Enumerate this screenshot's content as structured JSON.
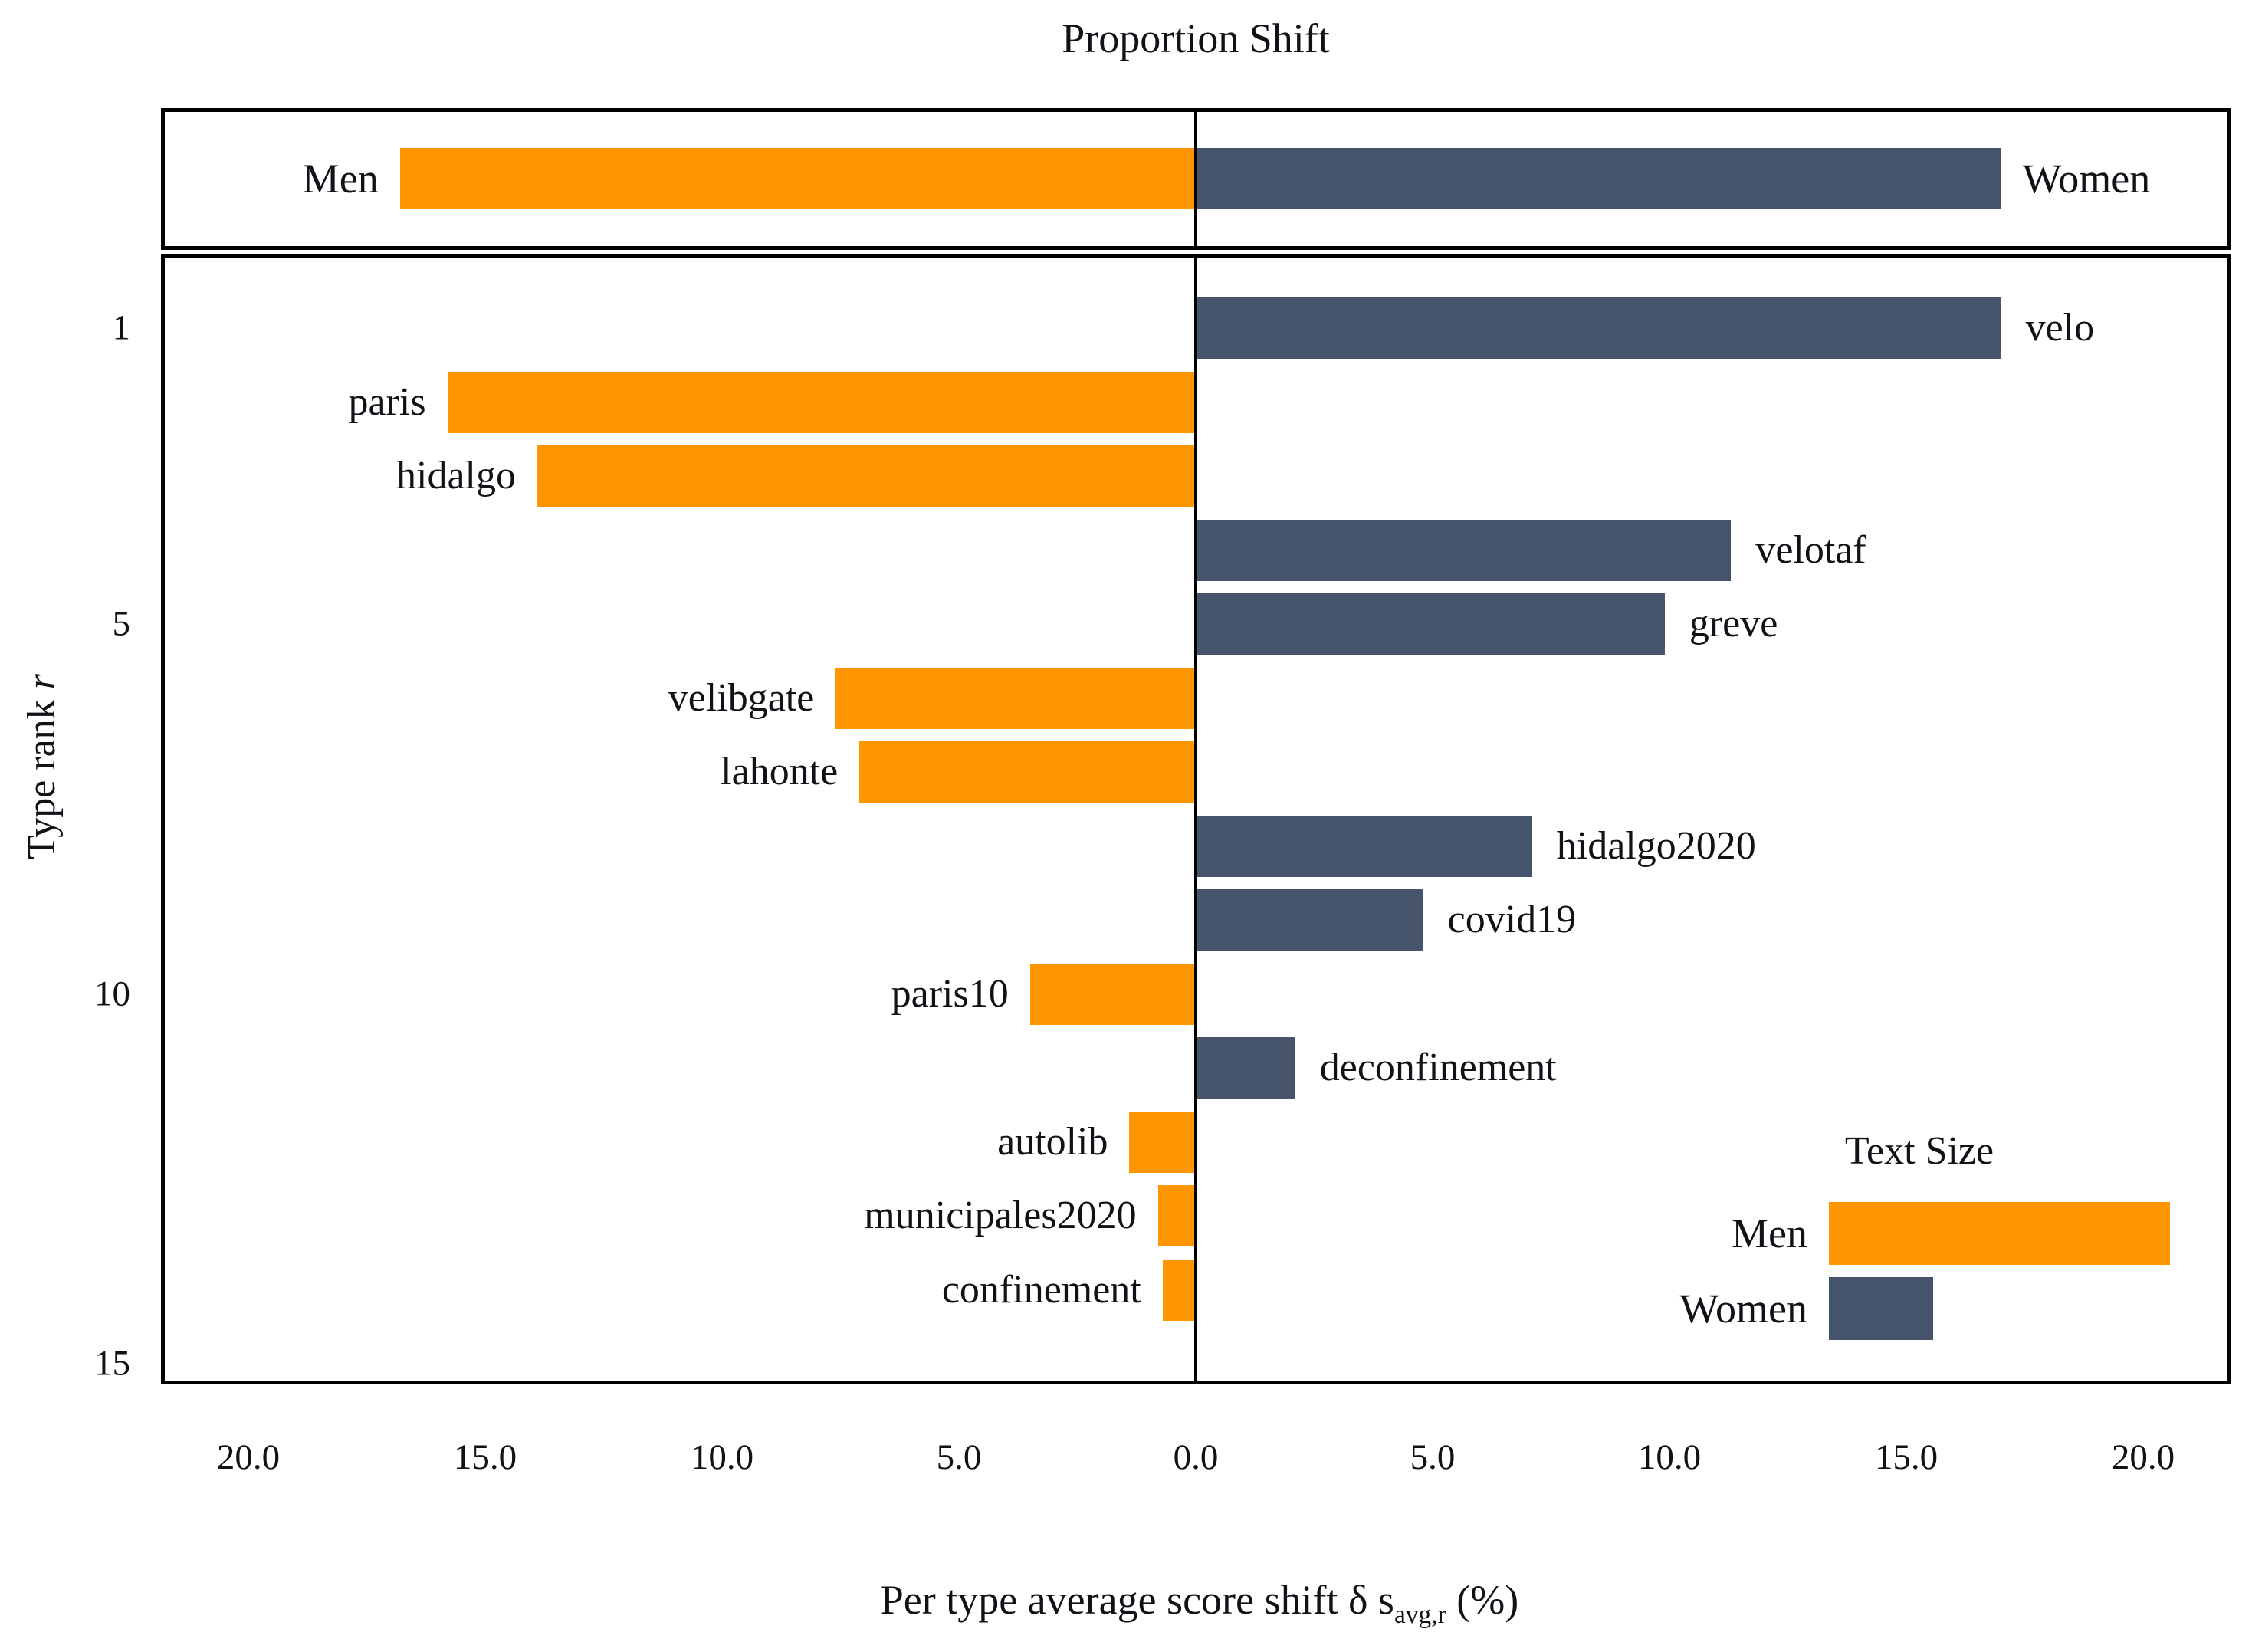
{
  "colors": {
    "men_orange": "#FF9500",
    "women_slate": "#45536B",
    "text": "#111118",
    "axis_border": "#000000",
    "background": "#FFFFFF"
  },
  "chart_data": {
    "type": "bar",
    "orientation": "horizontal-diverging",
    "title": "Proportion Shift",
    "xlabel": "Per type average score shift δ s_avg,r (%)",
    "xlabel_parts": {
      "prefix": "Per type average score shift δ s",
      "sub": "avg,r",
      "suffix": " (%)"
    },
    "ylabel": "Type rank r",
    "ylabel_parts": {
      "prefix": "Type rank ",
      "italic": "r"
    },
    "x_axis": {
      "tick_values": [
        -20,
        -15,
        -10,
        -5,
        0,
        5,
        10,
        15,
        20
      ],
      "tick_labels": [
        "20.0",
        "15.0",
        "10.0",
        "5.0",
        "0.0",
        "5.0",
        "10.0",
        "15.0",
        "20.0"
      ],
      "range": [
        -21.8,
        21.8
      ],
      "grid": false
    },
    "y_axis": {
      "tick_ranks": [
        1,
        5,
        10,
        15
      ],
      "tick_labels": [
        "1",
        "5",
        "10",
        "15"
      ],
      "range": [
        0,
        15.2
      ]
    },
    "header_row": {
      "men_label": "Men",
      "men_value": 16.8,
      "women_label": "Women",
      "women_value": 17.0
    },
    "series_meta": [
      {
        "name": "Men",
        "color": "#FF9500",
        "direction": "left"
      },
      {
        "name": "Women",
        "color": "#45536B",
        "direction": "right"
      }
    ],
    "rows": [
      {
        "rank": 1,
        "label": "velo",
        "group": "Women",
        "value": 17.0
      },
      {
        "rank": 2,
        "label": "paris",
        "group": "Men",
        "value": 15.8
      },
      {
        "rank": 3,
        "label": "hidalgo",
        "group": "Men",
        "value": 13.9
      },
      {
        "rank": 4,
        "label": "velotaf",
        "group": "Women",
        "value": 11.3
      },
      {
        "rank": 5,
        "label": "greve",
        "group": "Women",
        "value": 9.9
      },
      {
        "rank": 6,
        "label": "velibgate",
        "group": "Men",
        "value": 7.6
      },
      {
        "rank": 7,
        "label": "lahonte",
        "group": "Men",
        "value": 7.1
      },
      {
        "rank": 8,
        "label": "hidalgo2020",
        "group": "Women",
        "value": 7.1
      },
      {
        "rank": 9,
        "label": "covid19",
        "group": "Women",
        "value": 4.8
      },
      {
        "rank": 10,
        "label": "paris10",
        "group": "Men",
        "value": 3.5
      },
      {
        "rank": 11,
        "label": "deconfinement",
        "group": "Women",
        "value": 2.1
      },
      {
        "rank": 12,
        "label": "autolib",
        "group": "Men",
        "value": 1.4
      },
      {
        "rank": 13,
        "label": "municipales2020",
        "group": "Men",
        "value": 0.8
      },
      {
        "rank": 14,
        "label": "confinement",
        "group": "Men",
        "value": 0.7
      }
    ],
    "legend": {
      "title": "Text Size",
      "position": "lower-right-inside",
      "bar_start_x_units": 13.4,
      "entries": [
        {
          "label": "Men",
          "length_units": 7.2
        },
        {
          "label": "Women",
          "length_units": 2.2
        }
      ]
    }
  }
}
